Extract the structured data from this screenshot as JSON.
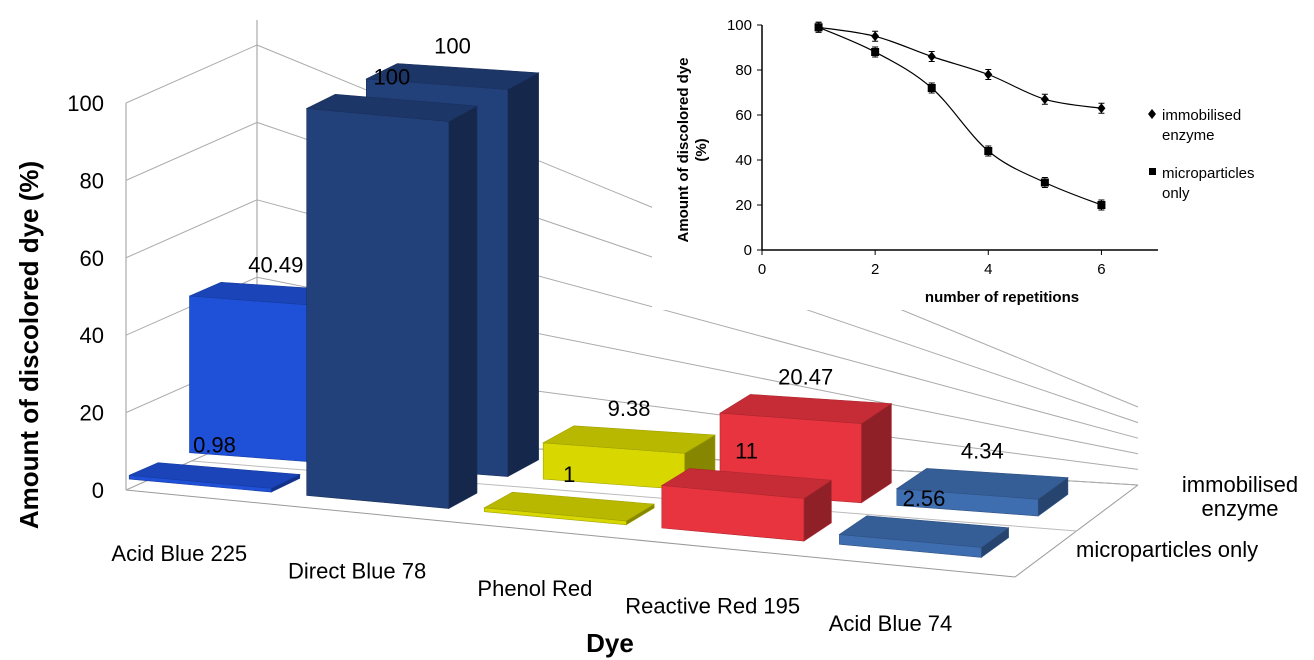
{
  "chart_data": [
    {
      "type": "bar",
      "projection": "3d",
      "categories": [
        "Acid Blue 225",
        "Direct Blue 78",
        "Phenol Red",
        "Reactive Red 195",
        "Acid Blue 74"
      ],
      "series": [
        {
          "name": "immobilised enzyme",
          "values": [
            40.49,
            100,
            9.38,
            20.47,
            4.34
          ]
        },
        {
          "name": "microparticles only",
          "values": [
            0.98,
            100,
            1,
            11,
            2.56
          ]
        }
      ],
      "bar_colors": [
        "#1f50d8",
        "#22407a",
        "#d8d800",
        "#e8343f",
        "#3e6db0"
      ],
      "data_labels": {
        "immobilised_enzyme": [
          "40.49",
          "100",
          "9.38",
          "20.47",
          "4.34"
        ],
        "microparticles_only": [
          "0.98",
          "100",
          "1",
          "11",
          "2.56"
        ]
      },
      "xlabel": "Dye",
      "ylabel": "Amount of discolored dye (%)",
      "ylim": [
        0,
        100
      ],
      "yticks": [
        "0",
        "20",
        "40",
        "60",
        "80",
        "100"
      ],
      "depth_labels": {
        "back_line1": "immobilised",
        "back_line2": "enzyme",
        "front": "microparticles only"
      },
      "grid": true
    },
    {
      "type": "scatter",
      "x": [
        1,
        2,
        3,
        4,
        5,
        6
      ],
      "series": [
        {
          "name": "immobilised enzyme",
          "values": [
            99,
            95,
            86,
            78,
            67,
            63
          ],
          "marker": "diamond"
        },
        {
          "name": "microparticles only",
          "values": [
            99,
            88,
            72,
            44,
            30,
            20
          ],
          "marker": "square"
        }
      ],
      "xlabel": "number of repetitions",
      "ylabel_line1": "Amount of discolored dye",
      "ylabel_line2": "(%)",
      "xlim": [
        0,
        7
      ],
      "ylim": [
        0,
        100
      ],
      "xticks": [
        "0",
        "2",
        "4",
        "6"
      ],
      "yticks": [
        "0",
        "20",
        "40",
        "60",
        "80",
        "100"
      ],
      "legend": {
        "immobilised_line1": "immobilised",
        "immobilised_line2": "enzyme",
        "micro_line1": "microparticles",
        "micro_line2": "only"
      },
      "legend_position": "right"
    }
  ]
}
